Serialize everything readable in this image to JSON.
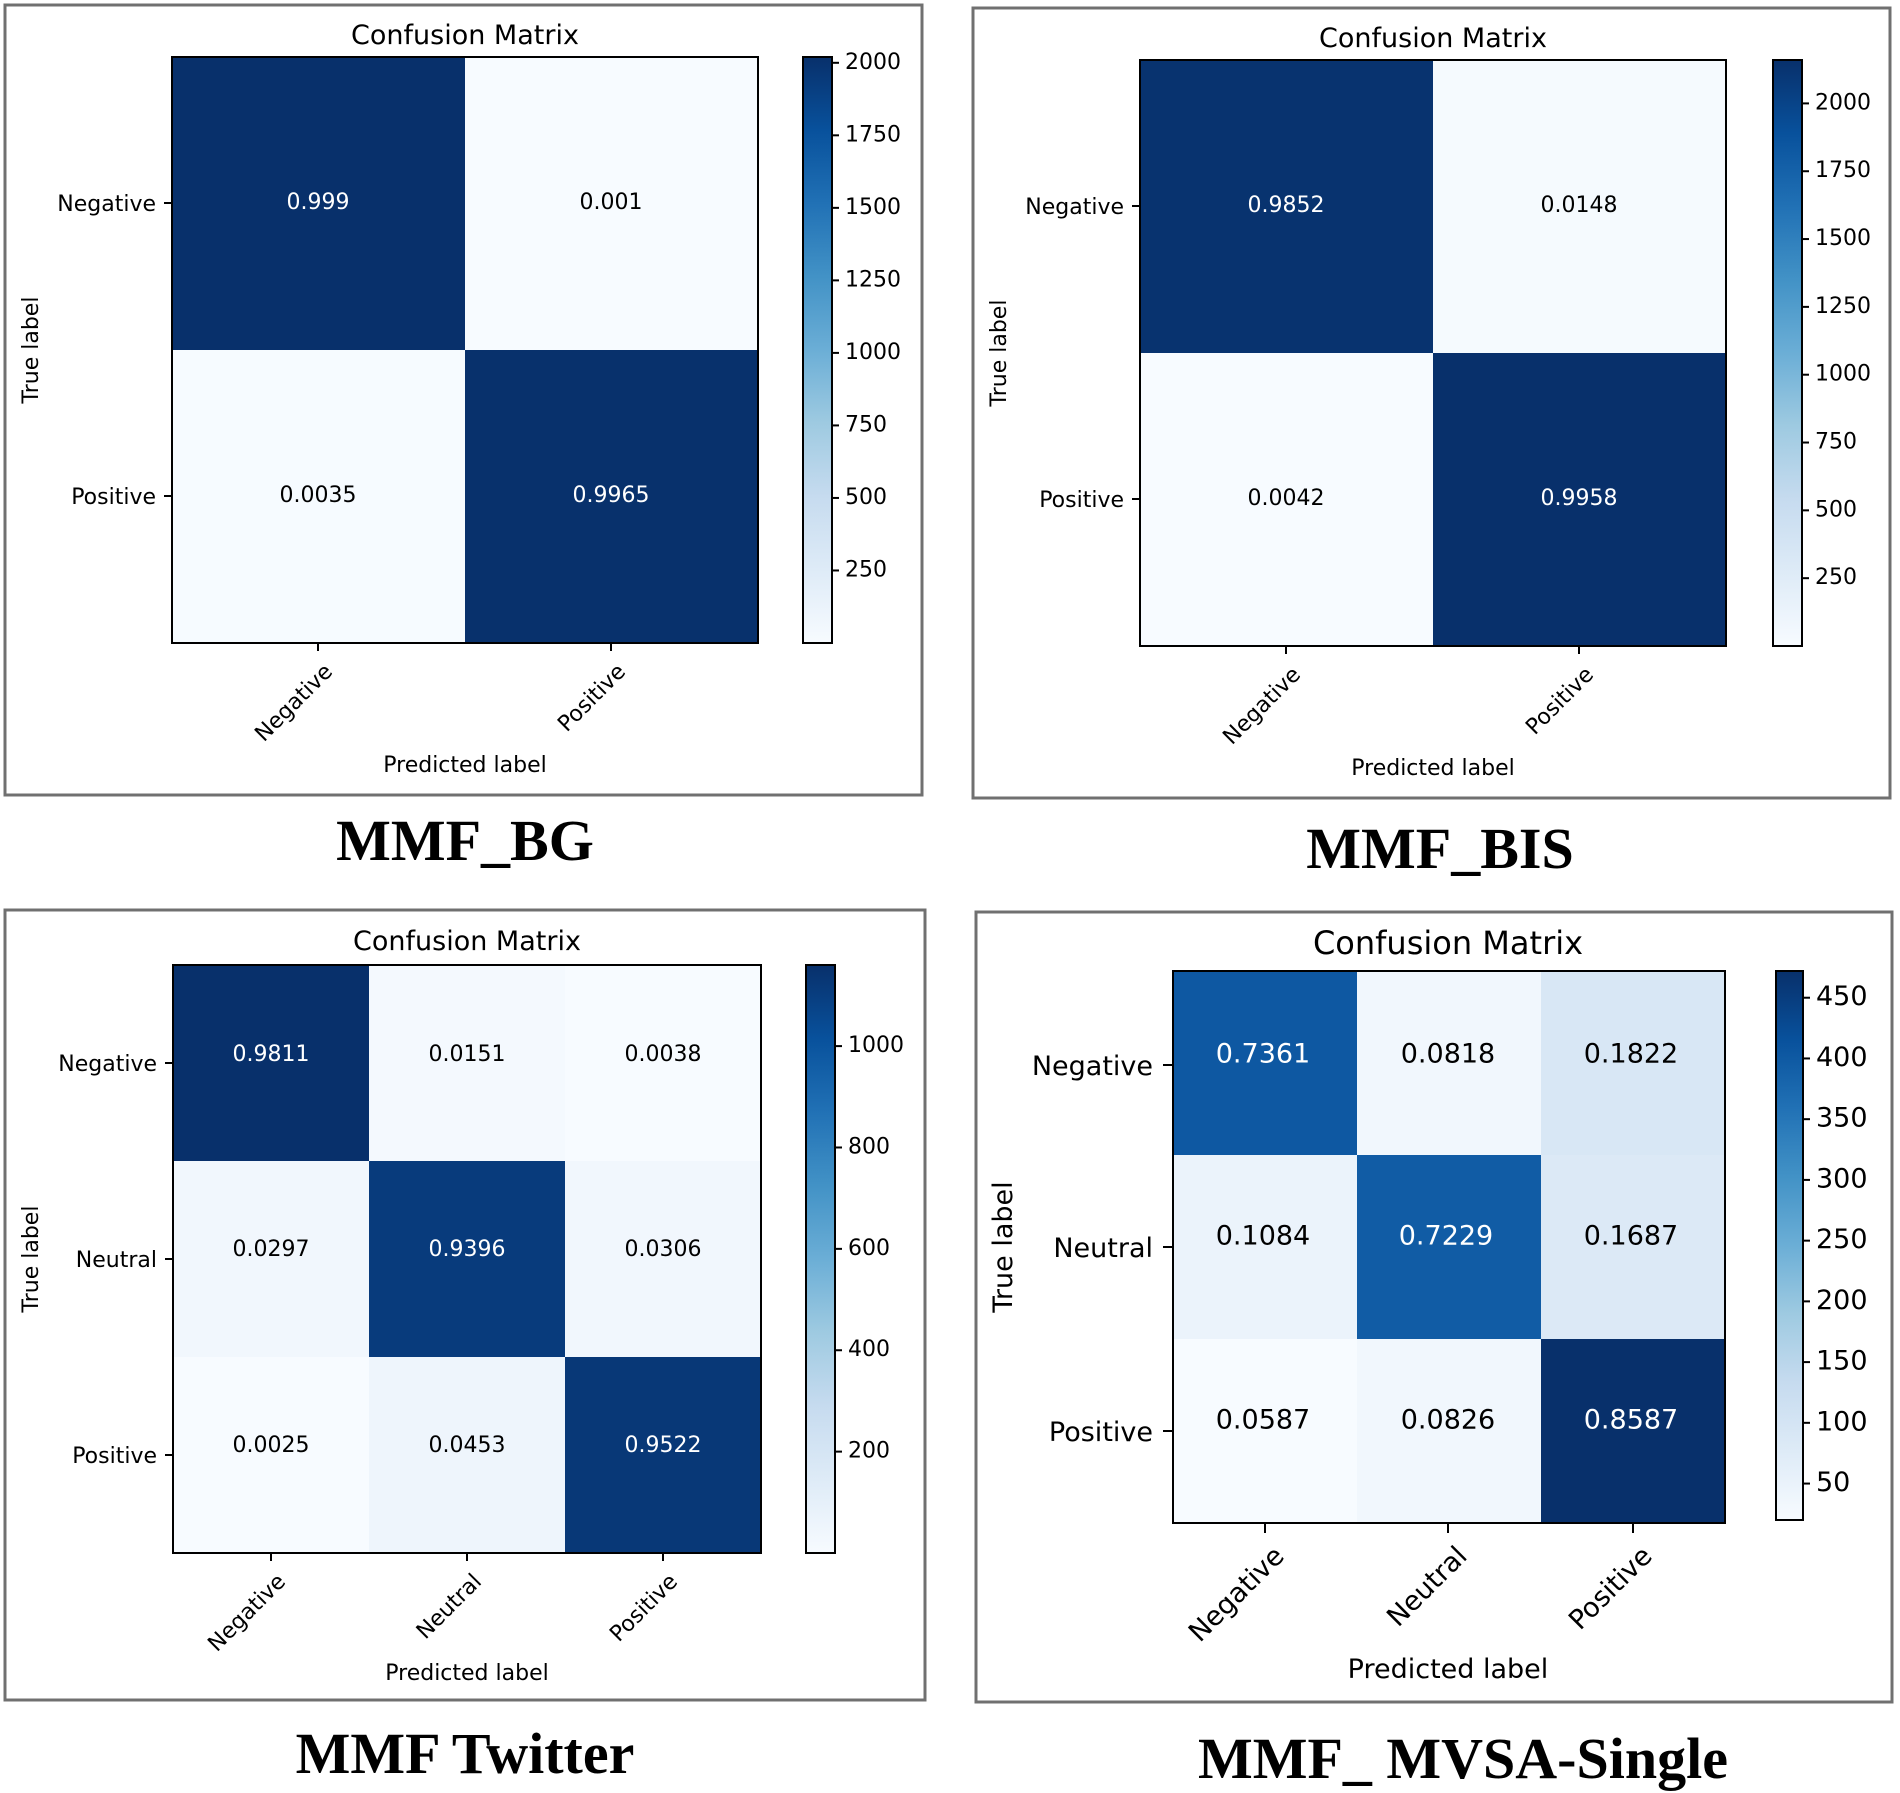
{
  "chart_data": [
    {
      "type": "heatmap",
      "title": "Confusion Matrix",
      "caption": "MMF_BG",
      "xlabel": "Predicted label",
      "ylabel": "True label",
      "x_categories": [
        "Negative",
        "Positive"
      ],
      "y_categories": [
        "Negative",
        "Positive"
      ],
      "labels": [
        [
          "0.999",
          "0.001"
        ],
        [
          "0.0035",
          "0.9965"
        ]
      ],
      "values": [
        [
          0.999,
          0.001
        ],
        [
          0.0035,
          0.9965
        ]
      ],
      "colorbar": {
        "range": [
          0,
          2020
        ],
        "ticks": [
          250,
          500,
          750,
          1000,
          1250,
          1500,
          1750,
          2000
        ],
        "colormap": "Blues"
      }
    },
    {
      "type": "heatmap",
      "title": "Confusion Matrix",
      "caption": "MMF_BIS",
      "xlabel": "Predicted label",
      "ylabel": "True label",
      "x_categories": [
        "Negative",
        "Positive"
      ],
      "y_categories": [
        "Negative",
        "Positive"
      ],
      "labels": [
        [
          "0.9852",
          "0.0148"
        ],
        [
          "0.0042",
          "0.9958"
        ]
      ],
      "values": [
        [
          0.9852,
          0.0148
        ],
        [
          0.0042,
          0.9958
        ]
      ],
      "colorbar": {
        "range": [
          0,
          2160
        ],
        "ticks": [
          250,
          500,
          750,
          1000,
          1250,
          1500,
          1750,
          2000
        ],
        "colormap": "Blues"
      }
    },
    {
      "type": "heatmap",
      "title": "Confusion Matrix",
      "caption": "MMF  Twitter",
      "xlabel": "Predicted label",
      "ylabel": "True label",
      "x_categories": [
        "Negative",
        "Neutral",
        "Positive"
      ],
      "y_categories": [
        "Negative",
        "Neutral",
        "Positive"
      ],
      "labels": [
        [
          "0.9811",
          "0.0151",
          "0.0038"
        ],
        [
          "0.0297",
          "0.9396",
          "0.0306"
        ],
        [
          "0.0025",
          "0.0453",
          "0.9522"
        ]
      ],
      "values": [
        [
          0.9811,
          0.0151,
          0.0038
        ],
        [
          0.0297,
          0.9396,
          0.0306
        ],
        [
          0.0025,
          0.0453,
          0.9522
        ]
      ],
      "colorbar": {
        "range": [
          0,
          1160
        ],
        "ticks": [
          200,
          400,
          600,
          800,
          1000
        ],
        "colormap": "Blues"
      }
    },
    {
      "type": "heatmap",
      "title": "Confusion Matrix",
      "caption": "MMF_ MVSA-Single",
      "xlabel": "Predicted label",
      "ylabel": "True label",
      "x_categories": [
        "Negative",
        "Neutral",
        "Positive"
      ],
      "y_categories": [
        "Negative",
        "Neutral",
        "Positive"
      ],
      "labels": [
        [
          "0.7361",
          "0.0818",
          "0.1822"
        ],
        [
          "0.1084",
          "0.7229",
          "0.1687"
        ],
        [
          "0.0587",
          "0.0826",
          "0.8587"
        ]
      ],
      "values": [
        [
          0.7361,
          0.0818,
          0.1822
        ],
        [
          0.1084,
          0.7229,
          0.1687
        ],
        [
          0.0587,
          0.0826,
          0.8587
        ]
      ],
      "colorbar": {
        "range": [
          20,
          472
        ],
        "ticks": [
          50,
          100,
          150,
          200,
          250,
          300,
          350,
          400,
          450
        ],
        "colormap": "Blues"
      }
    }
  ]
}
